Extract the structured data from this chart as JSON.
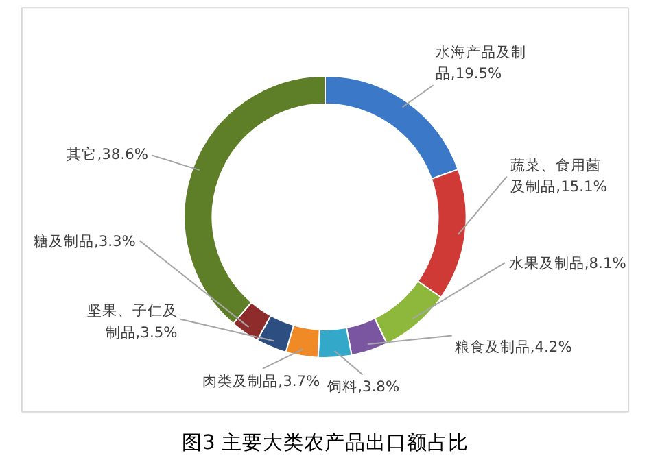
{
  "chart_data": {
    "type": "donut",
    "title": "图3 主要大类农产品出口额占比",
    "categories": [
      "水海产品及制品",
      "蔬菜、食用菌及制品",
      "水果及制品",
      "粮食及制品",
      "饲料",
      "肉类及制品",
      "坚果、子仁及制品",
      "糖及制品",
      "其它"
    ],
    "values": [
      19.5,
      15.1,
      8.1,
      4.2,
      3.8,
      3.7,
      3.5,
      3.3,
      38.6
    ],
    "value_labels": [
      "19.5%",
      "15.1%",
      "8.1%",
      "4.2%",
      "3.8%",
      "3.7%",
      "3.5%",
      "3.3%",
      "38.6%"
    ],
    "colors": [
      "#3b78c8",
      "#d03a36",
      "#8db83b",
      "#7a56a1",
      "#33a8c8",
      "#f08a27",
      "#2c4e80",
      "#8e2c2b",
      "#5e7f27"
    ]
  }
}
